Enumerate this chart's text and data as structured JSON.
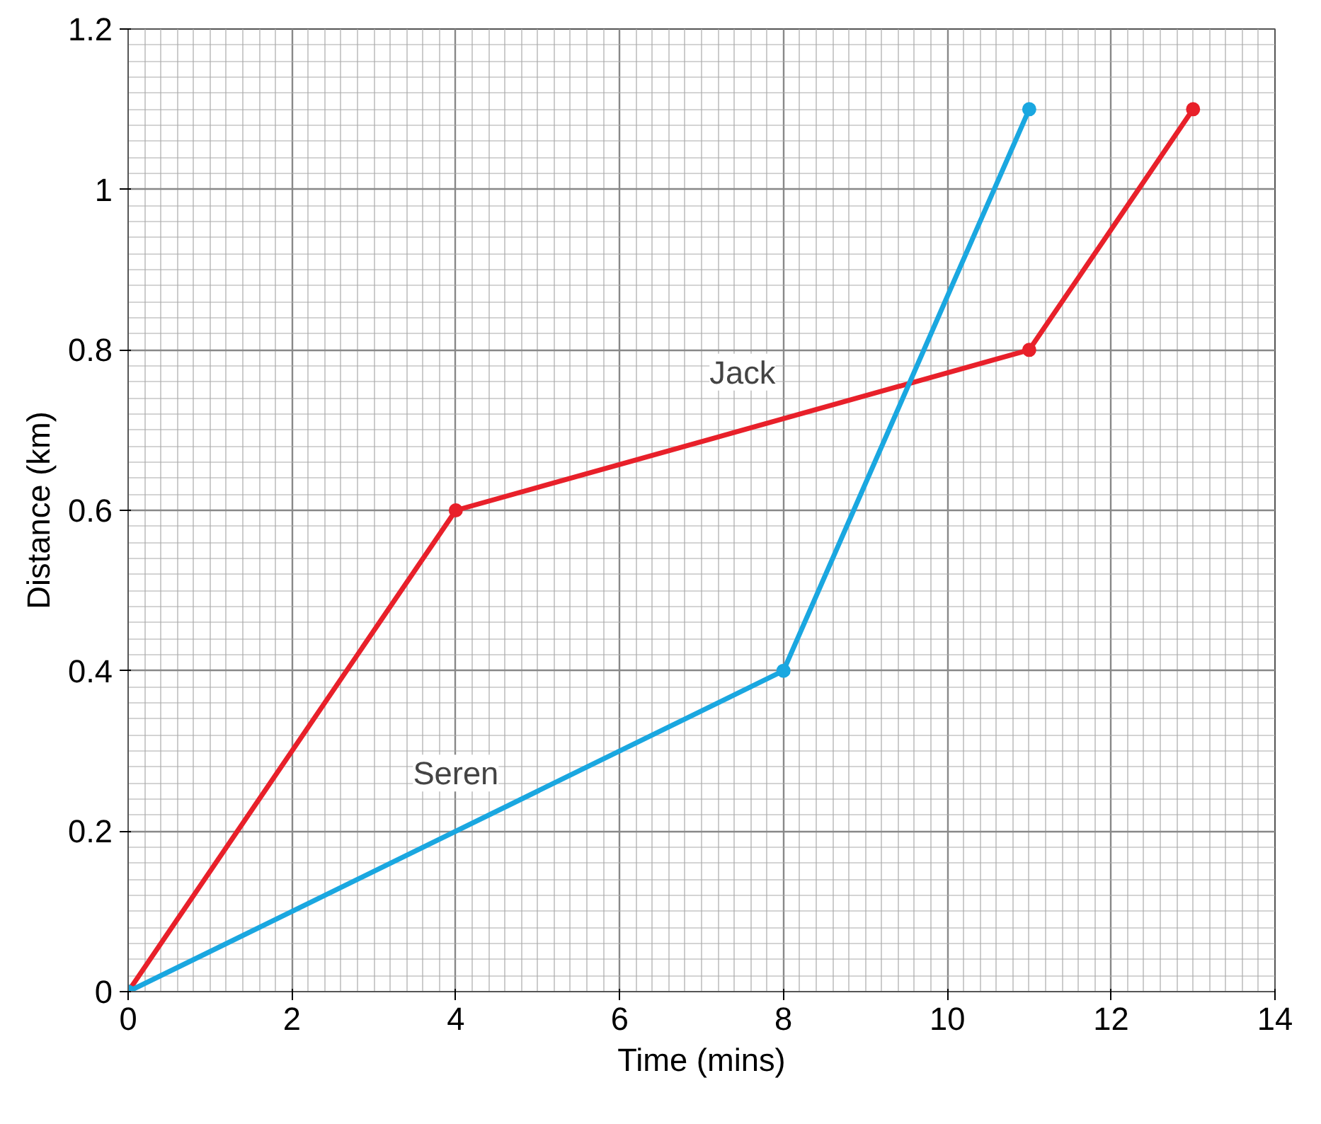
{
  "chart_data": {
    "type": "line",
    "xlabel": "Time (mins)",
    "ylabel": "Distance (km)",
    "series": [
      {
        "name": "Jack",
        "color": "#e8202a",
        "x": [
          0,
          4,
          11,
          13
        ],
        "values": [
          0,
          0.6,
          0.8,
          1.1
        ]
      },
      {
        "name": "Seren",
        "color": "#1aa7e0",
        "x": [
          0,
          8,
          11
        ],
        "values": [
          0,
          0.4,
          1.1
        ]
      }
    ],
    "xlim": [
      0,
      14
    ],
    "ylim": [
      0,
      1.2
    ],
    "xticks": [
      0,
      2,
      4,
      6,
      8,
      10,
      12,
      14
    ],
    "yticks": [
      0,
      0.2,
      0.4,
      0.6,
      0.8,
      1.0,
      1.2
    ],
    "grid": true,
    "marker": "circle",
    "line_style": "solid"
  }
}
